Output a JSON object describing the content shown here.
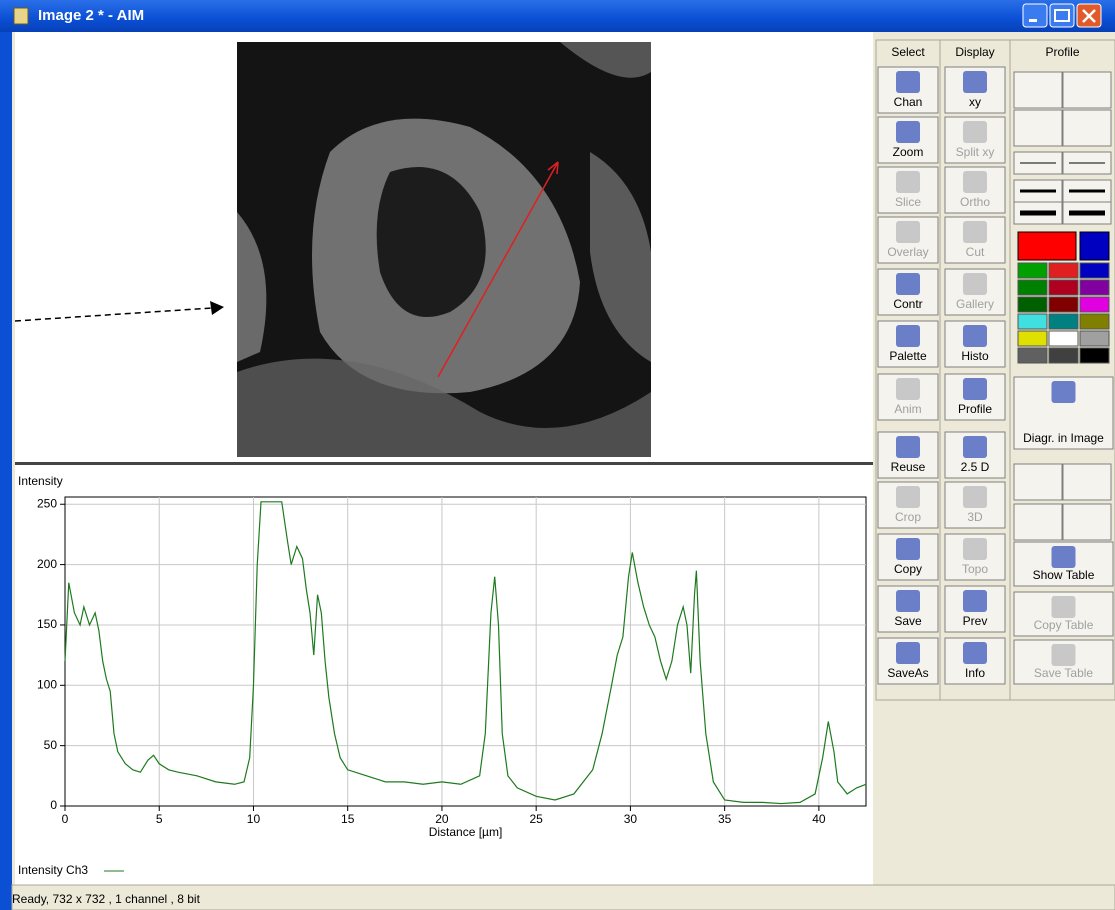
{
  "window": {
    "title": "Image 2 * - AIM"
  },
  "status": "Ready, 732 x 732 , 1 channel , 8 bit",
  "toolbar": {
    "headers": [
      "Select",
      "Display",
      "Profile"
    ],
    "select": [
      {
        "label": "Chan",
        "enabled": true
      },
      {
        "label": "Zoom",
        "enabled": true
      },
      {
        "label": "Slice",
        "enabled": false
      },
      {
        "label": "Overlay",
        "enabled": false
      },
      {
        "label": "Contr",
        "enabled": true
      },
      {
        "label": "Palette",
        "enabled": true
      },
      {
        "label": "Anim",
        "enabled": false
      },
      {
        "label": "Reuse",
        "enabled": true
      },
      {
        "label": "Crop",
        "enabled": false
      },
      {
        "label": "Copy",
        "enabled": true
      },
      {
        "label": "Save",
        "enabled": true
      },
      {
        "label": "SaveAs",
        "enabled": true
      }
    ],
    "display": [
      {
        "label": "xy",
        "enabled": true
      },
      {
        "label": "Split xy",
        "enabled": false
      },
      {
        "label": "Ortho",
        "enabled": false
      },
      {
        "label": "Cut",
        "enabled": false
      },
      {
        "label": "Gallery",
        "enabled": false
      },
      {
        "label": "Histo",
        "enabled": true
      },
      {
        "label": "Profile",
        "enabled": true
      },
      {
        "label": "2.5 D",
        "enabled": true
      },
      {
        "label": "3D",
        "enabled": false
      },
      {
        "label": "Topo",
        "enabled": false
      },
      {
        "label": "Prev",
        "enabled": true
      },
      {
        "label": "Info",
        "enabled": true
      }
    ],
    "profile": [
      {
        "label": "Diagr. in Image",
        "enabled": true
      },
      {
        "label": "Show Table",
        "enabled": true
      },
      {
        "label": "Copy Table",
        "enabled": false
      },
      {
        "label": "Save Table",
        "enabled": false
      }
    ]
  },
  "chart_data": {
    "type": "line",
    "y_label": "Intensity",
    "x_label": "Distance [µm]",
    "xlim": [
      0,
      42.5
    ],
    "ylim": [
      0,
      256
    ],
    "xticks": [
      0,
      5,
      10,
      15,
      20,
      25,
      30,
      35,
      40
    ],
    "yticks": [
      0,
      50,
      100,
      150,
      200,
      250
    ],
    "grid": true,
    "x": [
      0,
      0.2,
      0.5,
      0.8,
      1,
      1.3,
      1.6,
      1.8,
      2,
      2.2,
      2.4,
      2.6,
      2.8,
      3.2,
      3.6,
      4,
      4.4,
      4.7,
      5,
      5.5,
      6,
      7,
      8,
      9,
      9.5,
      9.8,
      10,
      10.2,
      10.4,
      11,
      11.5,
      11.8,
      12,
      12.3,
      12.6,
      12.8,
      13,
      13.2,
      13.4,
      13.6,
      13.8,
      14,
      14.3,
      14.6,
      15,
      16,
      17,
      18,
      19,
      20,
      21,
      22,
      22.3,
      22.6,
      22.8,
      23,
      23.2,
      23.5,
      24,
      25,
      26,
      27,
      28,
      28.5,
      29,
      29.3,
      29.6,
      29.9,
      30.1,
      30.4,
      30.7,
      31,
      31.3,
      31.6,
      31.9,
      32.2,
      32.5,
      32.8,
      33,
      33.2,
      33.4,
      33.5,
      33.7,
      34,
      34.4,
      35,
      36,
      37,
      38,
      39,
      39.8,
      40.2,
      40.5,
      40.8,
      41,
      41.5,
      42,
      42.5
    ],
    "series": [
      {
        "name": "Intensity Ch3",
        "color": "#1e7a1e",
        "values": [
          120,
          185,
          160,
          150,
          165,
          150,
          160,
          145,
          120,
          105,
          95,
          60,
          45,
          35,
          30,
          28,
          38,
          42,
          35,
          30,
          28,
          25,
          20,
          18,
          20,
          40,
          100,
          200,
          252,
          252,
          252,
          220,
          200,
          215,
          205,
          180,
          160,
          125,
          175,
          160,
          120,
          90,
          60,
          40,
          30,
          25,
          20,
          20,
          18,
          20,
          18,
          25,
          60,
          160,
          190,
          150,
          60,
          25,
          15,
          8,
          5,
          10,
          30,
          60,
          100,
          125,
          140,
          190,
          210,
          185,
          165,
          150,
          140,
          120,
          105,
          120,
          150,
          165,
          150,
          110,
          175,
          195,
          120,
          60,
          20,
          5,
          3,
          3,
          2,
          3,
          10,
          40,
          70,
          45,
          20,
          10,
          15,
          18
        ]
      }
    ]
  }
}
